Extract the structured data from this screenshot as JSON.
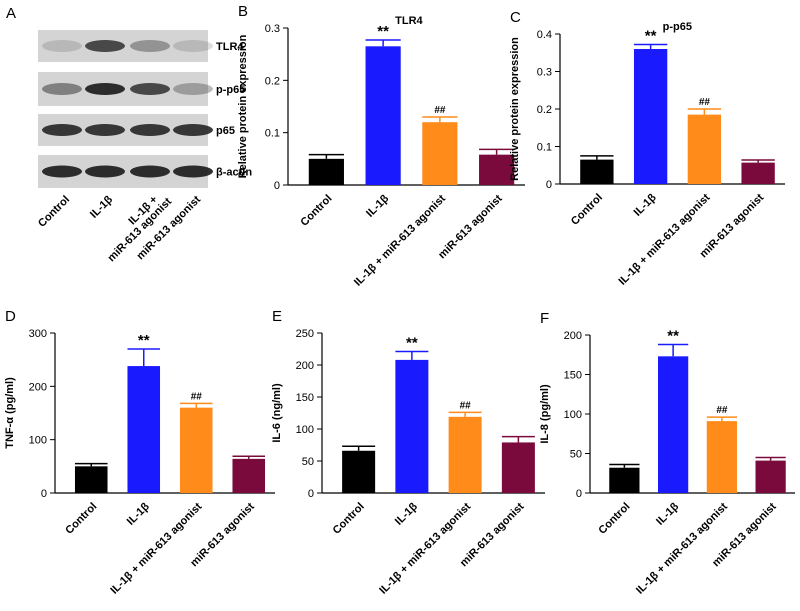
{
  "blot": {
    "panel": "A",
    "rows": [
      "TLR4",
      "p-p65",
      "p65",
      "β-actin"
    ],
    "lanes": [
      [
        "Control"
      ],
      [
        "IL-1β"
      ],
      [
        "IL-1β +",
        "miR-613 agonist"
      ],
      [
        "miR-613 agonist"
      ]
    ]
  },
  "chart_data": [
    {
      "type": "bar",
      "panel": "B",
      "title": "TLR4",
      "y_label": "Relative protein expression",
      "categories": [
        "Control",
        "IL-1β",
        "IL-1β + miR-613 agonist",
        "miR-613 agonist"
      ],
      "values": [
        0.05,
        0.265,
        0.12,
        0.058
      ],
      "errors": [
        0.008,
        0.012,
        0.01,
        0.01
      ],
      "annotations": [
        null,
        "**",
        "##",
        null
      ],
      "colors": [
        "#000000",
        "#1a1aff",
        "#ff8c1a",
        "#7a0a3c"
      ],
      "ylim": [
        0,
        0.3
      ],
      "yticks": [
        0,
        0.1,
        0.2,
        0.3
      ]
    },
    {
      "type": "bar",
      "panel": "C",
      "title": "p-p65",
      "y_label": "Relative protein expression",
      "categories": [
        "Control",
        "IL-1β",
        "IL-1β + miR-613 agonist",
        "miR-613 agonist"
      ],
      "values": [
        0.065,
        0.36,
        0.185,
        0.057
      ],
      "errors": [
        0.01,
        0.012,
        0.015,
        0.007
      ],
      "annotations": [
        null,
        "**",
        "##",
        null
      ],
      "colors": [
        "#000000",
        "#1a1aff",
        "#ff8c1a",
        "#7a0a3c"
      ],
      "ylim": [
        0,
        0.4
      ],
      "yticks": [
        0,
        0.1,
        0.2,
        0.3,
        0.4
      ]
    },
    {
      "type": "bar",
      "panel": "D",
      "y_label": "TNF-α (pg/ml)",
      "categories": [
        "Control",
        "IL-1β",
        "IL-1β + miR-613 agonist",
        "miR-613 agonist"
      ],
      "values": [
        50,
        238,
        160,
        64
      ],
      "errors": [
        5,
        32,
        8,
        5
      ],
      "annotations": [
        null,
        "**",
        "##",
        null
      ],
      "colors": [
        "#000000",
        "#1a1aff",
        "#ff8c1a",
        "#7a0a3c"
      ],
      "ylim": [
        0,
        300
      ],
      "yticks": [
        0,
        100,
        200,
        300
      ]
    },
    {
      "type": "bar",
      "panel": "E",
      "y_label": "IL-6 (ng/ml)",
      "categories": [
        "Control",
        "IL-1β",
        "IL-1β + miR-613 agonist",
        "miR-613 agonist"
      ],
      "values": [
        66,
        208,
        119,
        79
      ],
      "errors": [
        7,
        13,
        7,
        9
      ],
      "annotations": [
        null,
        "**",
        "##",
        null
      ],
      "colors": [
        "#000000",
        "#1a1aff",
        "#ff8c1a",
        "#7a0a3c"
      ],
      "ylim": [
        0,
        250
      ],
      "yticks": [
        0,
        50,
        100,
        150,
        200,
        250
      ]
    },
    {
      "type": "bar",
      "panel": "F",
      "y_label": "IL-8 (pg/ml)",
      "categories": [
        "Control",
        "IL-1β",
        "IL-1β + miR-613 agonist",
        "miR-613 agonist"
      ],
      "values": [
        32,
        173,
        91,
        41
      ],
      "errors": [
        4,
        15,
        5,
        4
      ],
      "annotations": [
        null,
        "**",
        "##",
        null
      ],
      "colors": [
        "#000000",
        "#1a1aff",
        "#ff8c1a",
        "#7a0a3c"
      ],
      "ylim": [
        0,
        200
      ],
      "yticks": [
        0,
        50,
        100,
        150,
        200
      ]
    }
  ]
}
